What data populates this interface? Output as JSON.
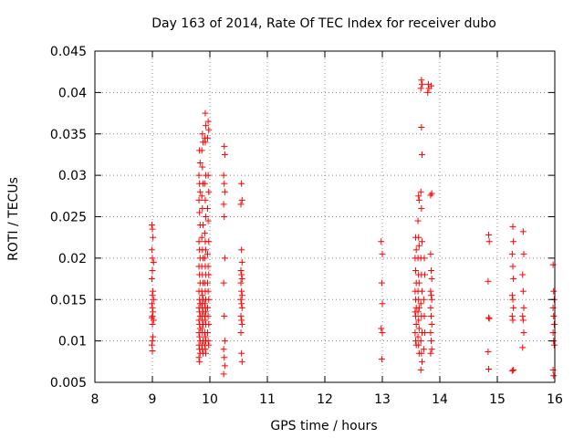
{
  "chart_data": {
    "type": "scatter",
    "title": "Day 163 of 2014, Rate Of TEC Index for receiver dubo",
    "xlabel": "GPS time / hours",
    "ylabel": "ROTI / TECUs",
    "xlim": [
      8,
      16
    ],
    "ylim": [
      0.005,
      0.045
    ],
    "x_ticks": [
      {
        "value": 8,
        "label": "8"
      },
      {
        "value": 9,
        "label": "9"
      },
      {
        "value": 10,
        "label": "10"
      },
      {
        "value": 11,
        "label": "11"
      },
      {
        "value": 12,
        "label": "12"
      },
      {
        "value": 13,
        "label": "13"
      },
      {
        "value": 14,
        "label": "14"
      },
      {
        "value": 15,
        "label": "15"
      },
      {
        "value": 16,
        "label": "16"
      }
    ],
    "y_ticks": [
      {
        "value": 0.005,
        "label": "0.005"
      },
      {
        "value": 0.01,
        "label": "0.01"
      },
      {
        "value": 0.015,
        "label": "0.015"
      },
      {
        "value": 0.02,
        "label": "0.02"
      },
      {
        "value": 0.025,
        "label": "0.025"
      },
      {
        "value": 0.03,
        "label": "0.03"
      },
      {
        "value": 0.035,
        "label": "0.035"
      },
      {
        "value": 0.04,
        "label": "0.04"
      },
      {
        "value": 0.045,
        "label": "0.045"
      }
    ],
    "grid": true,
    "marker": "+",
    "series": [
      {
        "name": "ROTI",
        "color": "#ff0000",
        "points": [
          [
            8.99,
            0.024
          ],
          [
            9.0,
            0.0235
          ],
          [
            9.01,
            0.0225
          ],
          [
            8.99,
            0.021
          ],
          [
            9.0,
            0.02
          ],
          [
            9.02,
            0.0195
          ],
          [
            9.0,
            0.0185
          ],
          [
            8.99,
            0.0175
          ],
          [
            9.01,
            0.016
          ],
          [
            9.0,
            0.0155
          ],
          [
            9.02,
            0.015
          ],
          [
            8.99,
            0.0145
          ],
          [
            9.0,
            0.014
          ],
          [
            9.01,
            0.0135
          ],
          [
            9.0,
            0.013
          ],
          [
            8.99,
            0.0128
          ],
          [
            9.02,
            0.0125
          ],
          [
            9.0,
            0.012
          ],
          [
            9.01,
            0.0105
          ],
          [
            9.0,
            0.01
          ],
          [
            8.99,
            0.0095
          ],
          [
            9.0,
            0.0088
          ],
          [
            9.82,
            0.033
          ],
          [
            9.83,
            0.0315
          ],
          [
            9.81,
            0.03
          ],
          [
            9.82,
            0.029
          ],
          [
            9.83,
            0.028
          ],
          [
            9.81,
            0.027
          ],
          [
            9.82,
            0.0255
          ],
          [
            9.83,
            0.024
          ],
          [
            9.81,
            0.022
          ],
          [
            9.82,
            0.021
          ],
          [
            9.83,
            0.02
          ],
          [
            9.81,
            0.019
          ],
          [
            9.82,
            0.018
          ],
          [
            9.83,
            0.017
          ],
          [
            9.81,
            0.016
          ],
          [
            9.82,
            0.015
          ],
          [
            9.83,
            0.0145
          ],
          [
            9.81,
            0.014
          ],
          [
            9.82,
            0.0135
          ],
          [
            9.83,
            0.013
          ],
          [
            9.81,
            0.0125
          ],
          [
            9.82,
            0.012
          ],
          [
            9.83,
            0.0115
          ],
          [
            9.81,
            0.011
          ],
          [
            9.82,
            0.0105
          ],
          [
            9.83,
            0.01
          ],
          [
            9.81,
            0.0095
          ],
          [
            9.82,
            0.009
          ],
          [
            9.83,
            0.0085
          ],
          [
            9.81,
            0.008
          ],
          [
            9.82,
            0.0075
          ],
          [
            9.87,
            0.035
          ],
          [
            9.88,
            0.034
          ],
          [
            9.86,
            0.033
          ],
          [
            9.87,
            0.031
          ],
          [
            9.88,
            0.029
          ],
          [
            9.86,
            0.0275
          ],
          [
            9.87,
            0.026
          ],
          [
            9.88,
            0.024
          ],
          [
            9.86,
            0.0225
          ],
          [
            9.87,
            0.021
          ],
          [
            9.88,
            0.02
          ],
          [
            9.86,
            0.019
          ],
          [
            9.87,
            0.018
          ],
          [
            9.88,
            0.017
          ],
          [
            9.86,
            0.016
          ],
          [
            9.87,
            0.0155
          ],
          [
            9.88,
            0.015
          ],
          [
            9.86,
            0.0145
          ],
          [
            9.87,
            0.014
          ],
          [
            9.88,
            0.0135
          ],
          [
            9.86,
            0.013
          ],
          [
            9.87,
            0.0125
          ],
          [
            9.88,
            0.012
          ],
          [
            9.86,
            0.0115
          ],
          [
            9.87,
            0.011
          ],
          [
            9.88,
            0.01
          ],
          [
            9.86,
            0.0095
          ],
          [
            9.87,
            0.009
          ],
          [
            9.88,
            0.0085
          ],
          [
            9.92,
            0.0375
          ],
          [
            9.93,
            0.036
          ],
          [
            9.91,
            0.0345
          ],
          [
            9.92,
            0.034
          ],
          [
            9.93,
            0.03
          ],
          [
            9.91,
            0.029
          ],
          [
            9.92,
            0.027
          ],
          [
            9.93,
            0.025
          ],
          [
            9.91,
            0.023
          ],
          [
            9.92,
            0.022
          ],
          [
            9.93,
            0.021
          ],
          [
            9.91,
            0.02
          ],
          [
            9.92,
            0.019
          ],
          [
            9.93,
            0.018
          ],
          [
            9.91,
            0.017
          ],
          [
            9.92,
            0.016
          ],
          [
            9.93,
            0.015
          ],
          [
            9.91,
            0.0145
          ],
          [
            9.92,
            0.014
          ],
          [
            9.93,
            0.0135
          ],
          [
            9.91,
            0.013
          ],
          [
            9.92,
            0.0125
          ],
          [
            9.93,
            0.012
          ],
          [
            9.91,
            0.011
          ],
          [
            9.92,
            0.0105
          ],
          [
            9.93,
            0.01
          ],
          [
            9.91,
            0.0095
          ],
          [
            9.92,
            0.009
          ],
          [
            9.93,
            0.0085
          ],
          [
            9.97,
            0.0365
          ],
          [
            9.98,
            0.0355
          ],
          [
            9.96,
            0.0345
          ],
          [
            9.97,
            0.03
          ],
          [
            9.98,
            0.028
          ],
          [
            9.96,
            0.026
          ],
          [
            9.97,
            0.0245
          ],
          [
            9.98,
            0.022
          ],
          [
            9.96,
            0.0205
          ],
          [
            9.97,
            0.019
          ],
          [
            9.98,
            0.018
          ],
          [
            9.96,
            0.017
          ],
          [
            9.97,
            0.016
          ],
          [
            9.98,
            0.015
          ],
          [
            9.96,
            0.014
          ],
          [
            9.97,
            0.013
          ],
          [
            9.98,
            0.012
          ],
          [
            9.96,
            0.011
          ],
          [
            9.97,
            0.01
          ],
          [
            9.98,
            0.0095
          ],
          [
            10.25,
            0.0335
          ],
          [
            10.26,
            0.0325
          ],
          [
            10.24,
            0.03
          ],
          [
            10.25,
            0.029
          ],
          [
            10.26,
            0.028
          ],
          [
            10.24,
            0.0265
          ],
          [
            10.25,
            0.025
          ],
          [
            10.26,
            0.02
          ],
          [
            10.24,
            0.017
          ],
          [
            10.25,
            0.013
          ],
          [
            10.26,
            0.01
          ],
          [
            10.24,
            0.009
          ],
          [
            10.25,
            0.008
          ],
          [
            10.26,
            0.007
          ],
          [
            10.24,
            0.006
          ],
          [
            10.55,
            0.029
          ],
          [
            10.56,
            0.027
          ],
          [
            10.54,
            0.0265
          ],
          [
            10.55,
            0.021
          ],
          [
            10.56,
            0.0195
          ],
          [
            10.54,
            0.0185
          ],
          [
            10.55,
            0.018
          ],
          [
            10.56,
            0.0175
          ],
          [
            10.54,
            0.017
          ],
          [
            10.55,
            0.016
          ],
          [
            10.56,
            0.0155
          ],
          [
            10.54,
            0.015
          ],
          [
            10.55,
            0.0145
          ],
          [
            10.56,
            0.014
          ],
          [
            10.54,
            0.013
          ],
          [
            10.55,
            0.0125
          ],
          [
            10.56,
            0.012
          ],
          [
            10.54,
            0.011
          ],
          [
            10.55,
            0.0085
          ],
          [
            10.56,
            0.0075
          ],
          [
            12.98,
            0.022
          ],
          [
            13.0,
            0.0205
          ],
          [
            12.99,
            0.017
          ],
          [
            13.0,
            0.0145
          ],
          [
            12.98,
            0.0115
          ],
          [
            13.0,
            0.011
          ],
          [
            12.99,
            0.0078
          ],
          [
            13.58,
            0.0225
          ],
          [
            13.59,
            0.021
          ],
          [
            13.57,
            0.02
          ],
          [
            13.58,
            0.0185
          ],
          [
            13.59,
            0.017
          ],
          [
            13.57,
            0.016
          ],
          [
            13.58,
            0.015
          ],
          [
            13.59,
            0.014
          ],
          [
            13.57,
            0.0135
          ],
          [
            13.58,
            0.013
          ],
          [
            13.59,
            0.012
          ],
          [
            13.57,
            0.011
          ],
          [
            13.58,
            0.01
          ],
          [
            13.59,
            0.0095
          ],
          [
            13.63,
            0.0275
          ],
          [
            13.64,
            0.027
          ],
          [
            13.62,
            0.0245
          ],
          [
            13.63,
            0.0225
          ],
          [
            13.64,
            0.0215
          ],
          [
            13.62,
            0.02
          ],
          [
            13.63,
            0.018
          ],
          [
            13.64,
            0.017
          ],
          [
            13.62,
            0.016
          ],
          [
            13.63,
            0.015
          ],
          [
            13.64,
            0.014
          ],
          [
            13.62,
            0.0135
          ],
          [
            13.63,
            0.0125
          ],
          [
            13.64,
            0.0115
          ],
          [
            13.62,
            0.0105
          ],
          [
            13.63,
            0.0095
          ],
          [
            13.64,
            0.0085
          ],
          [
            13.68,
            0.0415
          ],
          [
            13.69,
            0.041
          ],
          [
            13.67,
            0.0405
          ],
          [
            13.68,
            0.0358
          ],
          [
            13.69,
            0.0325
          ],
          [
            13.67,
            0.028
          ],
          [
            13.68,
            0.026
          ],
          [
            13.69,
            0.022
          ],
          [
            13.67,
            0.02
          ],
          [
            13.68,
            0.018
          ],
          [
            13.69,
            0.016
          ],
          [
            13.67,
            0.0145
          ],
          [
            13.68,
            0.013
          ],
          [
            13.69,
            0.011
          ],
          [
            13.67,
            0.01
          ],
          [
            13.68,
            0.0085
          ],
          [
            13.69,
            0.0075
          ],
          [
            13.67,
            0.0065
          ],
          [
            13.73,
            0.02
          ],
          [
            13.74,
            0.018
          ],
          [
            13.72,
            0.015
          ],
          [
            13.73,
            0.013
          ],
          [
            13.74,
            0.011
          ],
          [
            13.72,
            0.009
          ],
          [
            13.8,
            0.041
          ],
          [
            13.81,
            0.0405
          ],
          [
            13.79,
            0.04
          ],
          [
            13.85,
            0.0408
          ],
          [
            13.86,
            0.0278
          ],
          [
            13.84,
            0.0276
          ],
          [
            13.84,
            0.0205
          ],
          [
            13.85,
            0.0185
          ],
          [
            13.86,
            0.0175
          ],
          [
            13.84,
            0.016
          ],
          [
            13.85,
            0.0155
          ],
          [
            13.86,
            0.015
          ],
          [
            13.84,
            0.014
          ],
          [
            13.85,
            0.013
          ],
          [
            13.86,
            0.012
          ],
          [
            13.84,
            0.011
          ],
          [
            13.85,
            0.01
          ],
          [
            13.86,
            0.009
          ],
          [
            13.84,
            0.0085
          ],
          [
            14.85,
            0.0228
          ],
          [
            14.86,
            0.022
          ],
          [
            14.84,
            0.0172
          ],
          [
            14.85,
            0.0128
          ],
          [
            14.86,
            0.0127
          ],
          [
            14.84,
            0.0087
          ],
          [
            14.85,
            0.0066
          ],
          [
            15.27,
            0.0238
          ],
          [
            15.28,
            0.022
          ],
          [
            15.26,
            0.0205
          ],
          [
            15.27,
            0.019
          ],
          [
            15.28,
            0.0175
          ],
          [
            15.26,
            0.0155
          ],
          [
            15.27,
            0.015
          ],
          [
            15.28,
            0.014
          ],
          [
            15.26,
            0.013
          ],
          [
            15.27,
            0.0125
          ],
          [
            15.28,
            0.0065
          ],
          [
            15.26,
            0.0064
          ],
          [
            15.45,
            0.0232
          ],
          [
            15.46,
            0.0205
          ],
          [
            15.44,
            0.018
          ],
          [
            15.45,
            0.016
          ],
          [
            15.46,
            0.014
          ],
          [
            15.44,
            0.013
          ],
          [
            15.45,
            0.0125
          ],
          [
            15.46,
            0.011
          ],
          [
            15.44,
            0.0092
          ],
          [
            15.97,
            0.0192
          ],
          [
            15.98,
            0.016
          ],
          [
            15.99,
            0.015
          ],
          [
            15.97,
            0.014
          ],
          [
            15.98,
            0.013
          ],
          [
            15.99,
            0.012
          ],
          [
            15.97,
            0.011
          ],
          [
            15.98,
            0.01
          ],
          [
            15.99,
            0.0095
          ],
          [
            15.97,
            0.0065
          ],
          [
            15.98,
            0.0058
          ]
        ]
      }
    ]
  }
}
